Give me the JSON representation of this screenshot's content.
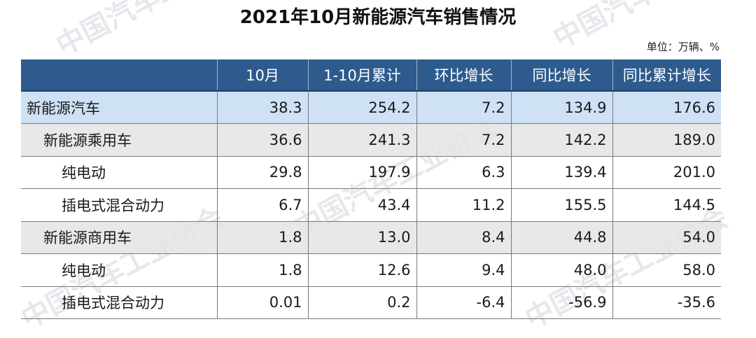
{
  "title": "2021年10月新能源汽车销售情况",
  "unit": "单位：万辆、%",
  "watermark_text": "中国汽车工业协会",
  "columns": [
    "",
    "10月",
    "1-10月累计",
    "环比增长",
    "同比增长",
    "同比累计增长"
  ],
  "rows": [
    {
      "level": 0,
      "name": "新能源汽车",
      "oct": "38.3",
      "ytd": "254.2",
      "mom": "7.2",
      "yoy": "134.9",
      "yoy_ytd": "176.6"
    },
    {
      "level": 1,
      "name": "新能源乘用车",
      "oct": "36.6",
      "ytd": "241.3",
      "mom": "7.2",
      "yoy": "142.2",
      "yoy_ytd": "189.0"
    },
    {
      "level": 2,
      "name": "纯电动",
      "oct": "29.8",
      "ytd": "197.9",
      "mom": "6.3",
      "yoy": "139.4",
      "yoy_ytd": "201.0"
    },
    {
      "level": 2,
      "name": "插电式混合动力",
      "oct": "6.7",
      "ytd": "43.4",
      "mom": "11.2",
      "yoy": "155.5",
      "yoy_ytd": "144.5"
    },
    {
      "level": 1,
      "name": "新能源商用车",
      "oct": "1.8",
      "ytd": "13.0",
      "mom": "8.4",
      "yoy": "44.8",
      "yoy_ytd": "54.0"
    },
    {
      "level": 2,
      "name": "纯电动",
      "oct": "1.8",
      "ytd": "12.6",
      "mom": "9.4",
      "yoy": "48.0",
      "yoy_ytd": "58.0"
    },
    {
      "level": 2,
      "name": "插电式混合动力",
      "oct": "0.01",
      "ytd": "0.2",
      "mom": "-6.4",
      "yoy": "-56.9",
      "yoy_ytd": "-35.6"
    }
  ],
  "colors": {
    "header_bg": "#2d5b8e",
    "total_row_bg": "#c6dcf3",
    "subtotal_row_bg": "#e4e4e4",
    "watermark": "#e3e6ea"
  }
}
